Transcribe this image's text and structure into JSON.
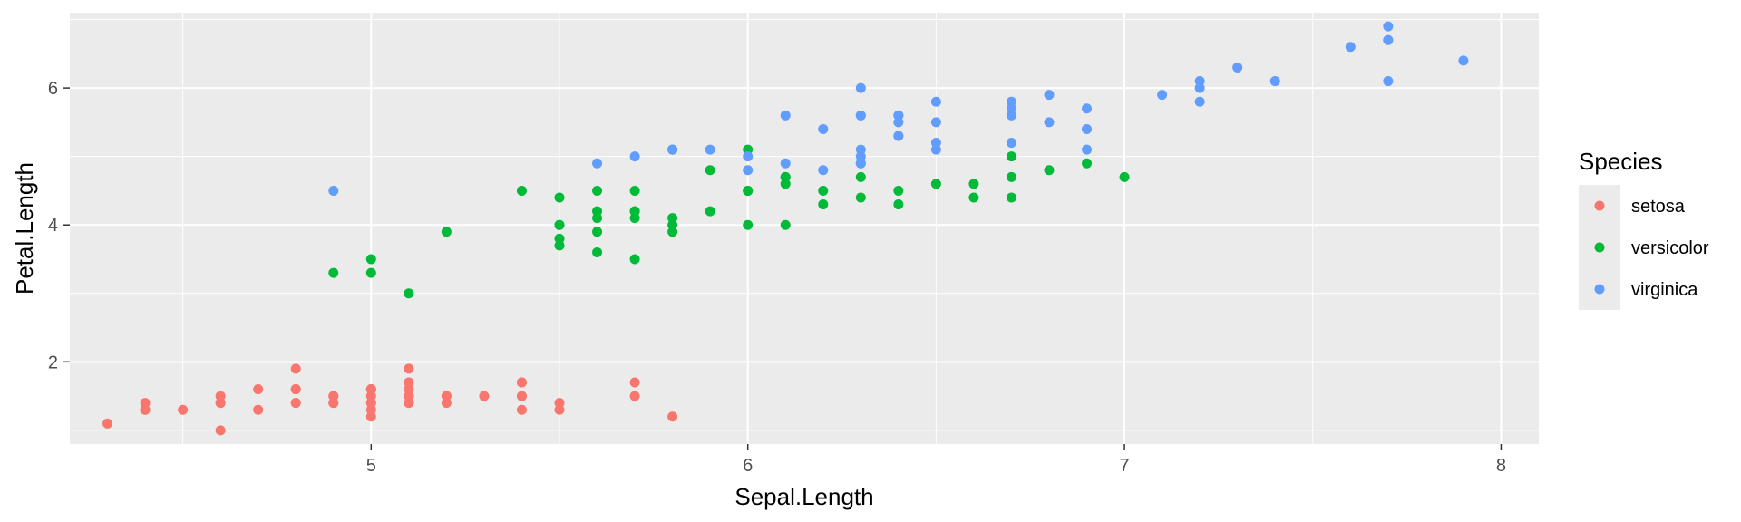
{
  "chart_data": {
    "type": "scatter",
    "title": "",
    "xlabel": "Sepal.Length",
    "ylabel": "Petal.Length",
    "xlim": [
      4.2,
      8.1
    ],
    "ylim": [
      0.8,
      7.1
    ],
    "x_ticks": [
      5,
      6,
      7,
      8
    ],
    "y_ticks": [
      2,
      4,
      6
    ],
    "grid": true,
    "legend": {
      "title": "Species",
      "placement": "right"
    },
    "series": [
      {
        "name": "setosa",
        "color": "#F8766D",
        "points": [
          [
            5.1,
            1.4
          ],
          [
            4.9,
            1.4
          ],
          [
            4.7,
            1.3
          ],
          [
            4.6,
            1.5
          ],
          [
            5.0,
            1.4
          ],
          [
            5.4,
            1.7
          ],
          [
            4.6,
            1.4
          ],
          [
            5.0,
            1.5
          ],
          [
            4.4,
            1.4
          ],
          [
            4.9,
            1.5
          ],
          [
            5.4,
            1.5
          ],
          [
            4.8,
            1.6
          ],
          [
            4.8,
            1.4
          ],
          [
            4.3,
            1.1
          ],
          [
            5.8,
            1.2
          ],
          [
            5.7,
            1.5
          ],
          [
            5.4,
            1.3
          ],
          [
            5.1,
            1.4
          ],
          [
            5.7,
            1.7
          ],
          [
            5.1,
            1.5
          ],
          [
            5.4,
            1.7
          ],
          [
            5.1,
            1.5
          ],
          [
            4.6,
            1.0
          ],
          [
            5.1,
            1.7
          ],
          [
            4.8,
            1.9
          ],
          [
            5.0,
            1.6
          ],
          [
            5.0,
            1.6
          ],
          [
            5.2,
            1.5
          ],
          [
            5.2,
            1.4
          ],
          [
            4.7,
            1.6
          ],
          [
            4.8,
            1.6
          ],
          [
            5.4,
            1.5
          ],
          [
            5.2,
            1.5
          ],
          [
            5.5,
            1.4
          ],
          [
            4.9,
            1.5
          ],
          [
            5.0,
            1.2
          ],
          [
            5.5,
            1.3
          ],
          [
            4.9,
            1.4
          ],
          [
            4.4,
            1.3
          ],
          [
            5.1,
            1.5
          ],
          [
            5.0,
            1.3
          ],
          [
            4.5,
            1.3
          ],
          [
            4.4,
            1.3
          ],
          [
            5.0,
            1.6
          ],
          [
            5.1,
            1.9
          ],
          [
            4.8,
            1.4
          ],
          [
            5.1,
            1.6
          ],
          [
            4.6,
            1.4
          ],
          [
            5.3,
            1.5
          ],
          [
            5.0,
            1.4
          ]
        ]
      },
      {
        "name": "versicolor",
        "color": "#00BA38",
        "points": [
          [
            7.0,
            4.7
          ],
          [
            6.4,
            4.5
          ],
          [
            6.9,
            4.9
          ],
          [
            5.5,
            4.0
          ],
          [
            6.5,
            4.6
          ],
          [
            5.7,
            4.5
          ],
          [
            6.3,
            4.7
          ],
          [
            4.9,
            3.3
          ],
          [
            6.6,
            4.6
          ],
          [
            5.2,
            3.9
          ],
          [
            5.0,
            3.5
          ],
          [
            5.9,
            4.2
          ],
          [
            6.0,
            4.0
          ],
          [
            6.1,
            4.7
          ],
          [
            5.6,
            3.6
          ],
          [
            6.7,
            4.4
          ],
          [
            5.6,
            4.5
          ],
          [
            5.8,
            4.1
          ],
          [
            6.2,
            4.5
          ],
          [
            5.6,
            3.9
          ],
          [
            5.9,
            4.8
          ],
          [
            6.1,
            4.0
          ],
          [
            6.3,
            4.9
          ],
          [
            6.1,
            4.7
          ],
          [
            6.4,
            4.3
          ],
          [
            6.6,
            4.4
          ],
          [
            6.8,
            4.8
          ],
          [
            6.7,
            5.0
          ],
          [
            6.0,
            4.5
          ],
          [
            5.7,
            3.5
          ],
          [
            5.5,
            3.8
          ],
          [
            5.5,
            3.7
          ],
          [
            5.8,
            3.9
          ],
          [
            6.0,
            5.1
          ],
          [
            5.4,
            4.5
          ],
          [
            6.0,
            4.5
          ],
          [
            6.7,
            4.7
          ],
          [
            6.3,
            4.4
          ],
          [
            5.6,
            4.1
          ],
          [
            5.5,
            4.0
          ],
          [
            5.5,
            4.4
          ],
          [
            6.1,
            4.6
          ],
          [
            5.8,
            4.0
          ],
          [
            5.0,
            3.3
          ],
          [
            5.6,
            4.2
          ],
          [
            5.7,
            4.2
          ],
          [
            5.7,
            4.2
          ],
          [
            6.2,
            4.3
          ],
          [
            5.1,
            3.0
          ],
          [
            5.7,
            4.1
          ]
        ]
      },
      {
        "name": "virginica",
        "color": "#619CFF",
        "points": [
          [
            6.3,
            6.0
          ],
          [
            5.8,
            5.1
          ],
          [
            7.1,
            5.9
          ],
          [
            6.3,
            5.6
          ],
          [
            6.5,
            5.8
          ],
          [
            7.6,
            6.6
          ],
          [
            4.9,
            4.5
          ],
          [
            7.3,
            6.3
          ],
          [
            6.7,
            5.8
          ],
          [
            7.2,
            6.1
          ],
          [
            6.5,
            5.1
          ],
          [
            6.4,
            5.3
          ],
          [
            6.8,
            5.5
          ],
          [
            5.7,
            5.0
          ],
          [
            5.8,
            5.1
          ],
          [
            6.4,
            5.3
          ],
          [
            6.5,
            5.5
          ],
          [
            7.7,
            6.7
          ],
          [
            7.7,
            6.9
          ],
          [
            6.0,
            5.0
          ],
          [
            6.9,
            5.7
          ],
          [
            5.6,
            4.9
          ],
          [
            7.7,
            6.7
          ],
          [
            6.3,
            4.9
          ],
          [
            6.7,
            5.7
          ],
          [
            7.2,
            6.0
          ],
          [
            6.2,
            4.8
          ],
          [
            6.1,
            4.9
          ],
          [
            6.4,
            5.6
          ],
          [
            7.2,
            5.8
          ],
          [
            7.4,
            6.1
          ],
          [
            7.9,
            6.4
          ],
          [
            6.4,
            5.6
          ],
          [
            6.3,
            5.1
          ],
          [
            6.1,
            5.6
          ],
          [
            7.7,
            6.1
          ],
          [
            6.3,
            5.6
          ],
          [
            6.4,
            5.5
          ],
          [
            6.0,
            4.8
          ],
          [
            6.9,
            5.4
          ],
          [
            6.7,
            5.6
          ],
          [
            6.9,
            5.1
          ],
          [
            5.8,
            5.1
          ],
          [
            6.8,
            5.9
          ],
          [
            6.7,
            5.7
          ],
          [
            6.7,
            5.2
          ],
          [
            6.3,
            5.0
          ],
          [
            6.5,
            5.2
          ],
          [
            6.2,
            5.4
          ],
          [
            5.9,
            5.1
          ]
        ]
      }
    ]
  }
}
